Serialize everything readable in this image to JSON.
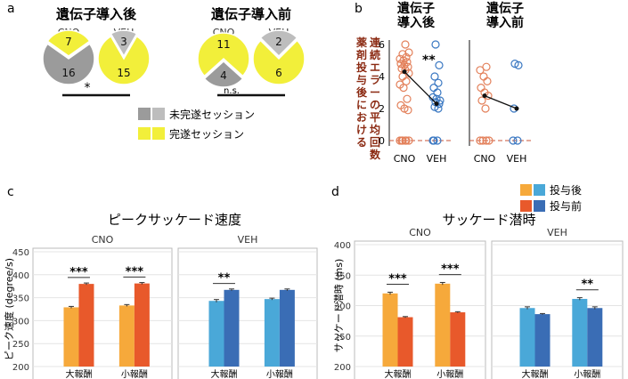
{
  "panel_labels": {
    "a": "a",
    "b": "b",
    "c": "c",
    "d": "d"
  },
  "legend_bars": {
    "after": "投与後",
    "before": "投与前"
  },
  "colors": {
    "cno_after": "#f6a93b",
    "cno_before": "#e8592b",
    "veh_after": "#4aa8d8",
    "veh_before": "#3a6db5",
    "pie_gray": "#9b9b9b",
    "pie_yellow": "#f2ef3a",
    "pie_incomplete_veh": "#bdbdbd"
  },
  "chart_data": [
    {
      "type": "pie",
      "panel": "a",
      "groups": [
        {
          "title": "遺伝子導入後",
          "pies": [
            {
              "label": "CNO",
              "values": [
                {
                  "name": "未完遂セッション",
                  "value": 16
                },
                {
                  "name": "完遂セッション",
                  "value": 7
                }
              ]
            },
            {
              "label": "VEH",
              "values": [
                {
                  "name": "未完遂セッション",
                  "value": 3
                },
                {
                  "name": "完遂セッション",
                  "value": 15
                }
              ]
            }
          ],
          "significance": "*"
        },
        {
          "title": "遺伝子導入前",
          "pies": [
            {
              "label": "CNO",
              "values": [
                {
                  "name": "未完遂セッション",
                  "value": 4
                },
                {
                  "name": "完遂セッション",
                  "value": 11
                }
              ]
            },
            {
              "label": "VEH",
              "values": [
                {
                  "name": "未完遂セッション",
                  "value": 2
                },
                {
                  "name": "完遂セッション",
                  "value": 6
                }
              ]
            }
          ],
          "significance": "n.s."
        }
      ],
      "legend": [
        "未完遂セッション",
        "完遂セッション"
      ]
    },
    {
      "type": "scatter",
      "panel": "b",
      "ylabel": "薬剤投与後における連続エラーの平均回数",
      "yticks": [
        0,
        2,
        4,
        6
      ],
      "ylim": [
        -0.3,
        6.3
      ],
      "subplots": [
        {
          "title_lines": [
            "遺伝子",
            "導入後"
          ],
          "categories": [
            "CNO",
            "VEH"
          ],
          "significance": "**",
          "cno": [
            0,
            0,
            0,
            0,
            0,
            0,
            1.9,
            2.0,
            2.2,
            2.6,
            3.3,
            3.5,
            3.7,
            4.0,
            4.2,
            4.4,
            4.5,
            4.6,
            4.7,
            4.8,
            4.9,
            5.0,
            5.1,
            5.2,
            5.4,
            5.5,
            6.0
          ],
          "veh": [
            0,
            0,
            0,
            2.0,
            2.1,
            2.3,
            2.4,
            2.5,
            2.6,
            2.7,
            3.0,
            3.3,
            3.6,
            4.0,
            4.7,
            6.0
          ],
          "means": [
            4.3,
            2.3
          ]
        },
        {
          "title_lines": [
            "遺伝子",
            "導入前"
          ],
          "categories": [
            "CNO",
            "VEH"
          ],
          "significance": "",
          "cno": [
            0,
            0,
            0,
            0,
            2.0,
            2.5,
            2.8,
            3.0,
            3.3,
            3.7,
            4.0,
            4.4,
            4.6
          ],
          "veh": [
            0,
            0,
            2.0,
            4.7,
            4.8
          ],
          "means": [
            2.8,
            2.0
          ]
        }
      ]
    },
    {
      "type": "bar",
      "panel": "c",
      "title": "ピークサッケード速度",
      "ylabel": "ピーク速度 (degree/s)",
      "ylim": [
        200,
        450
      ],
      "yticks": [
        200,
        250,
        300,
        350,
        400,
        450
      ],
      "subplots": [
        {
          "title": "CNO",
          "categories": [
            "大報酬",
            "小報酬"
          ],
          "series": [
            {
              "name": "投与後",
              "values": [
                329,
                333
              ],
              "errors": [
                2,
                2
              ]
            },
            {
              "name": "投与前",
              "values": [
                380,
                381
              ],
              "errors": [
                2,
                2
              ]
            }
          ],
          "significance": [
            "***",
            "***"
          ]
        },
        {
          "title": "VEH",
          "categories": [
            "大報酬",
            "小報酬"
          ],
          "series": [
            {
              "name": "投与後",
              "values": [
                343,
                347
              ],
              "errors": [
                3,
                2
              ]
            },
            {
              "name": "投与前",
              "values": [
                367,
                367
              ],
              "errors": [
                2,
                2
              ]
            }
          ],
          "significance": [
            "**",
            ""
          ]
        }
      ]
    },
    {
      "type": "bar",
      "panel": "d",
      "title": "サッケード潜時",
      "ylabel": "サッケード潜時 (ms)",
      "ylim": [
        200,
        400
      ],
      "yticks": [
        200,
        250,
        300,
        350,
        400
      ],
      "subplots": [
        {
          "title": "CNO",
          "categories": [
            "大報酬",
            "小報酬"
          ],
          "series": [
            {
              "name": "投与後",
              "values": [
                320,
                336
              ],
              "errors": [
                2,
                2
              ]
            },
            {
              "name": "投与前",
              "values": [
                281,
                289
              ],
              "errors": [
                1,
                1
              ]
            }
          ],
          "significance": [
            "***",
            "***"
          ]
        },
        {
          "title": "VEH",
          "categories": [
            "大報酬",
            "小報酬"
          ],
          "series": [
            {
              "name": "投与後",
              "values": [
                296,
                311
              ],
              "errors": [
                2,
                2
              ]
            },
            {
              "name": "投与前",
              "values": [
                286,
                296
              ],
              "errors": [
                1,
                2
              ]
            }
          ],
          "significance": [
            "",
            "**"
          ]
        }
      ]
    }
  ]
}
